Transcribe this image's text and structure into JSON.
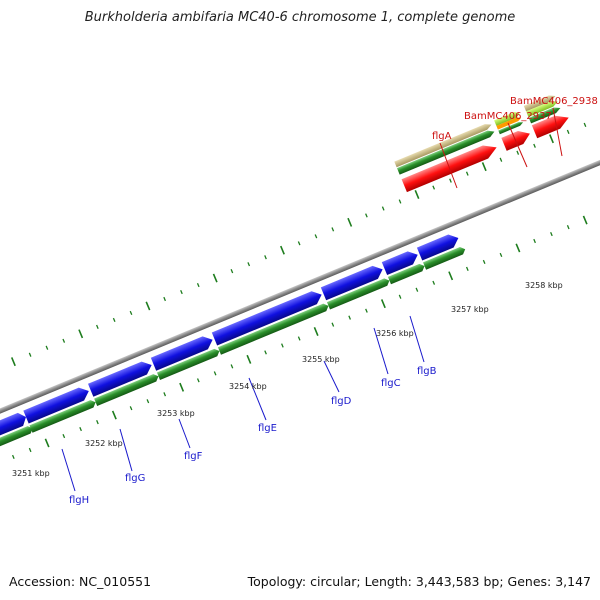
{
  "title": "Burkholderia ambifaria MC40-6 chromosome 1, complete genome",
  "footer": {
    "accession": "Accession: NC_010551",
    "summary": "Topology: circular; Length: 3,443,583 bp; Genes: 3,147"
  },
  "colors": {
    "backbone": "#8a8a8a",
    "tick_major": "#1e7d1e",
    "forward_gene": "#1010e0",
    "cds_track": "#2a8f2a",
    "selected_gene": "#ff1010",
    "locus_tag_gene": "#c8b878",
    "label_blue": "#1a1acc",
    "label_red": "#cc1111"
  },
  "scale_labels": [
    {
      "name": "scale-label-3251",
      "text": "3251 kbp"
    },
    {
      "name": "scale-label-3252",
      "text": "3252 kbp"
    },
    {
      "name": "scale-label-3253",
      "text": "3253 kbp"
    },
    {
      "name": "scale-label-3254",
      "text": "3254 kbp"
    },
    {
      "name": "scale-label-3255",
      "text": "3255 kbp"
    },
    {
      "name": "scale-label-3256",
      "text": "3256 kbp"
    },
    {
      "name": "scale-label-3257",
      "text": "3257 kbp"
    },
    {
      "name": "scale-label-3258",
      "text": "3258 kbp"
    }
  ],
  "gene_labels": [
    {
      "name": "gene-label-flgH",
      "text": "flgH",
      "color": "blue"
    },
    {
      "name": "gene-label-flgG",
      "text": "flgG",
      "color": "blue"
    },
    {
      "name": "gene-label-flgF",
      "text": "flgF",
      "color": "blue"
    },
    {
      "name": "gene-label-flgE",
      "text": "flgE",
      "color": "blue"
    },
    {
      "name": "gene-label-flgD",
      "text": "flgD",
      "color": "blue"
    },
    {
      "name": "gene-label-flgC",
      "text": "flgC",
      "color": "blue"
    },
    {
      "name": "gene-label-flgB",
      "text": "flgB",
      "color": "blue"
    },
    {
      "name": "gene-label-flgA",
      "text": "flgA",
      "color": "red"
    },
    {
      "name": "gene-label-BamMC406_2937",
      "text": "BamMC406_2937",
      "color": "red"
    },
    {
      "name": "gene-label-BamMC406_2938",
      "text": "BamMC406_2938",
      "color": "red"
    }
  ]
}
